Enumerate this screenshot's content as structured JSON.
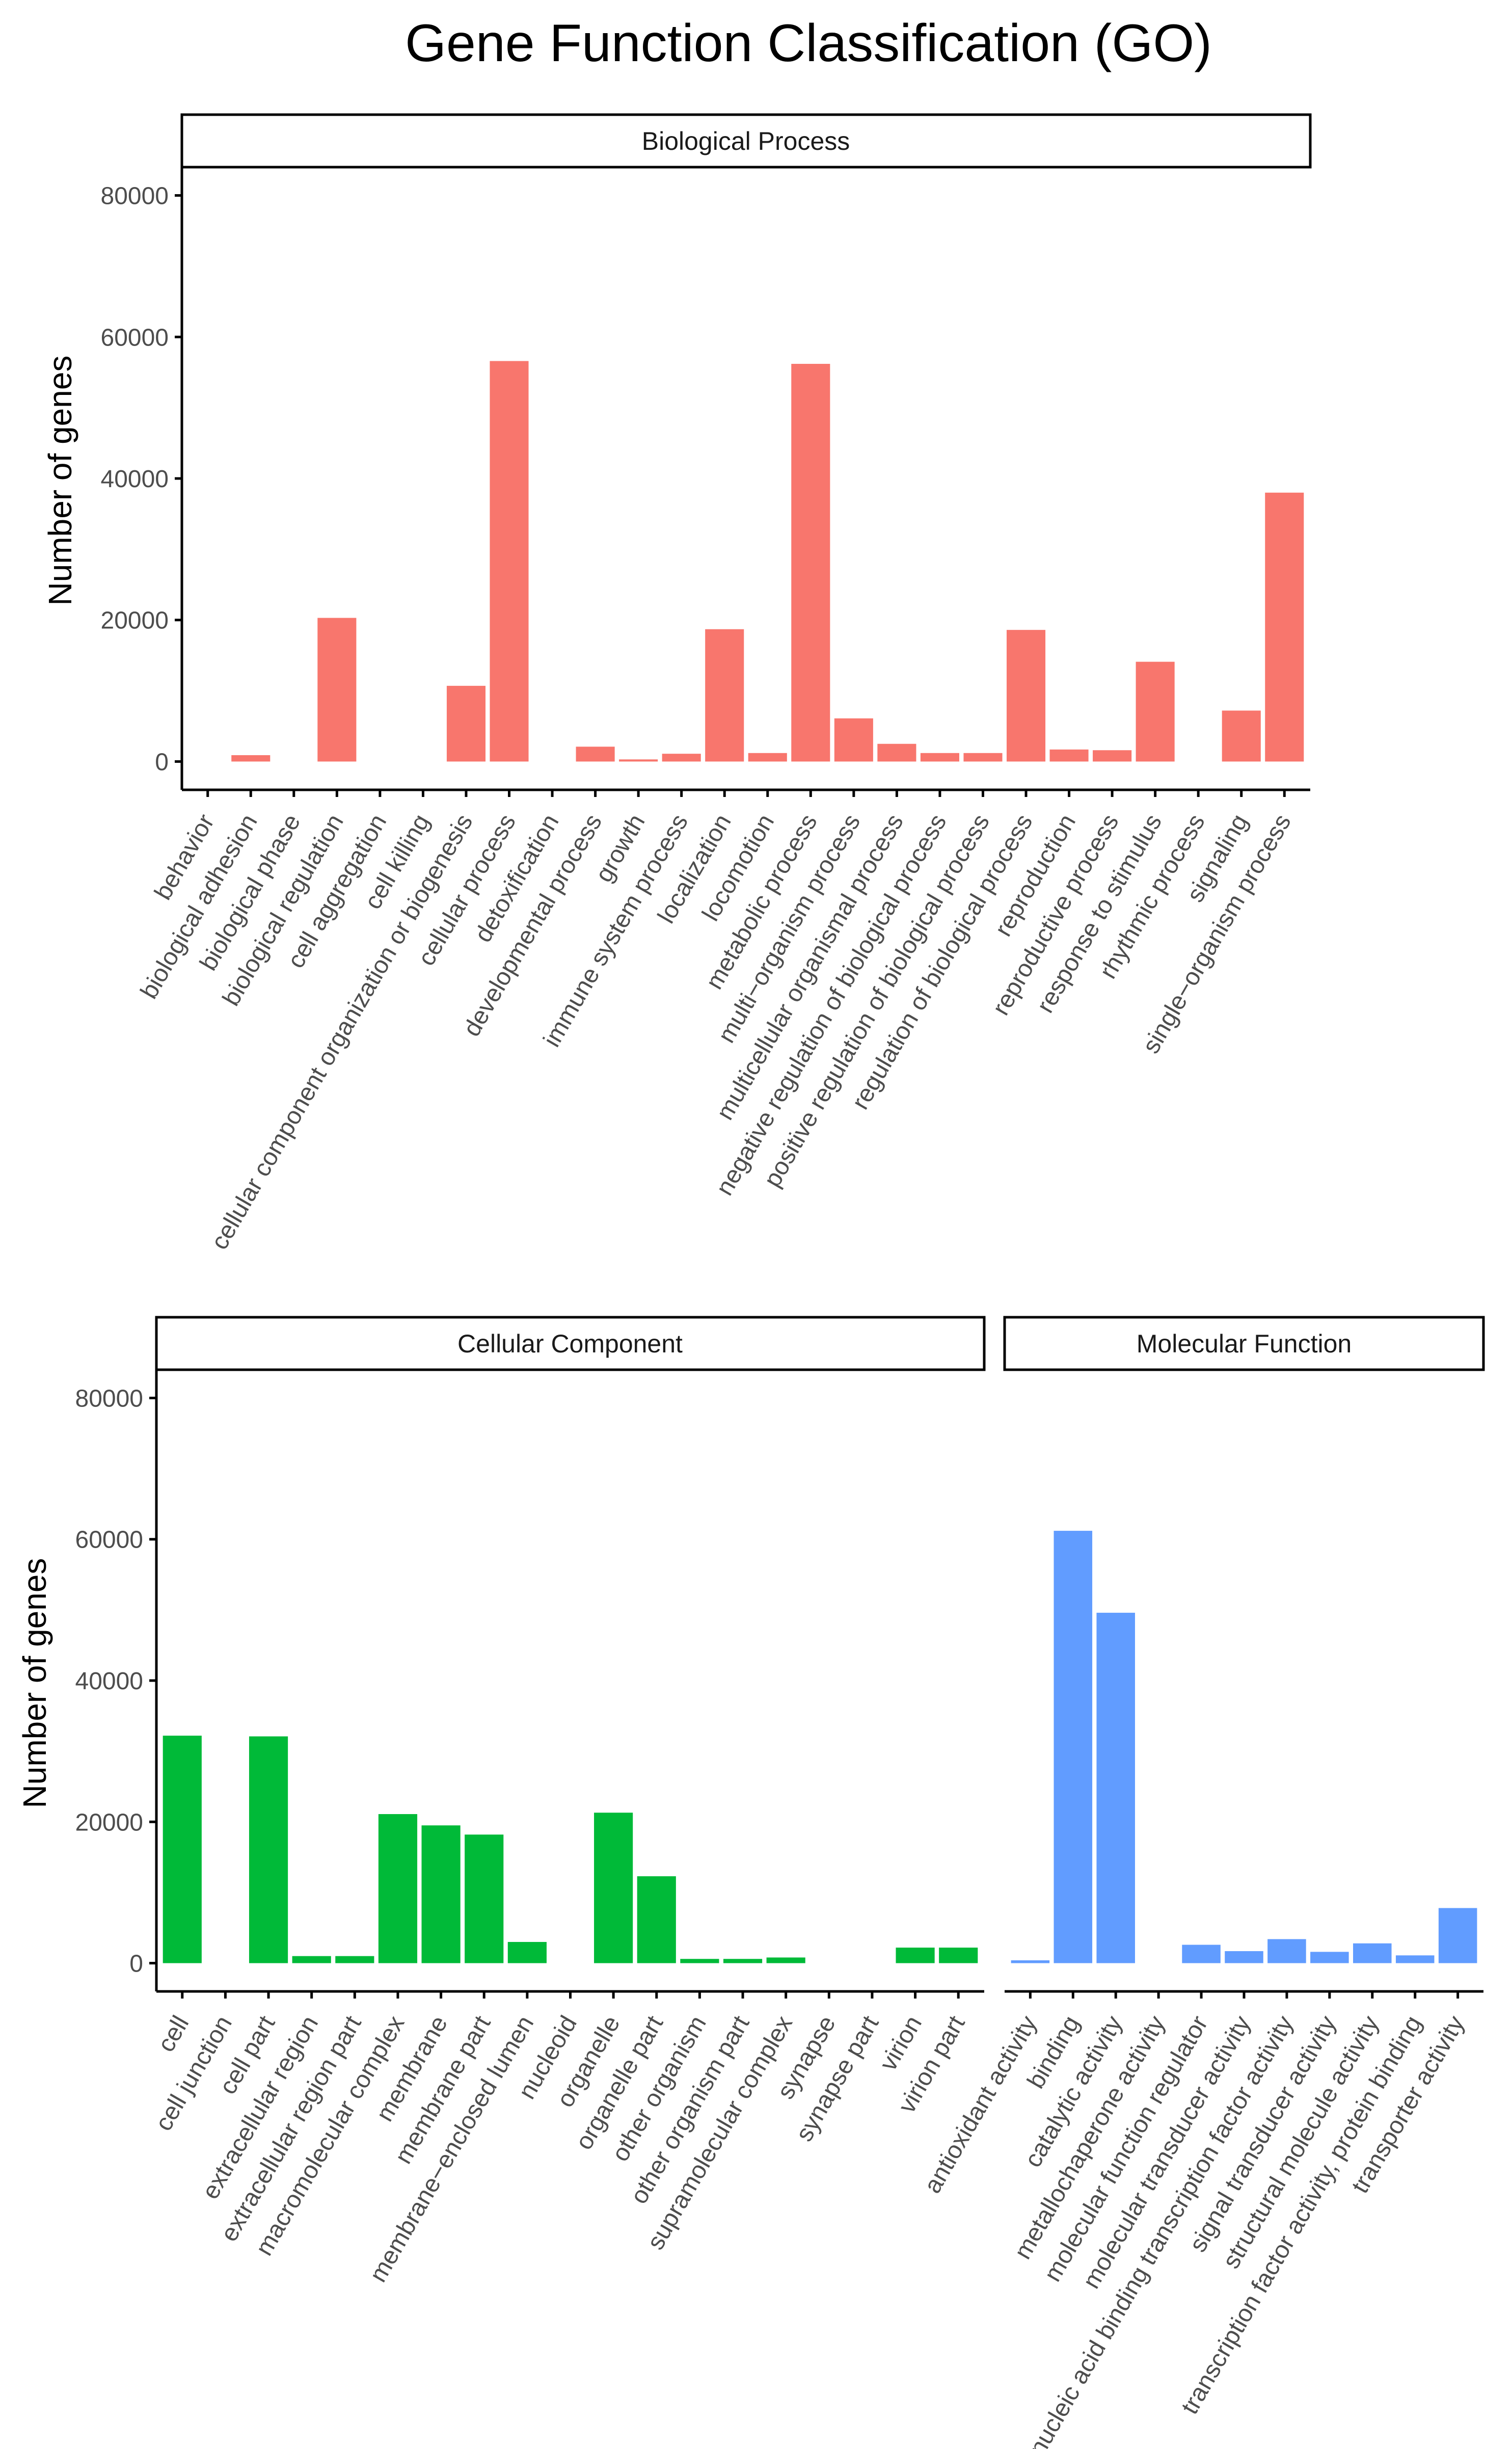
{
  "figure_title": "Gene Function Classification (GO)",
  "colors": {
    "biological_process": "#F8766D",
    "cellular_component": "#00BA38",
    "molecular_function": "#619CFF",
    "axis": "#000000",
    "tick_text": "#4D4D4D",
    "strip_fill": "#FFFFFF",
    "background": "#FFFFFF"
  },
  "chart_data": [
    {
      "type": "bar",
      "panel": "Biological Process",
      "ylabel": "Number of genes",
      "ylim": [
        -4000,
        84000
      ],
      "yticks": [
        "0",
        "20000",
        "40000",
        "60000",
        "80000"
      ],
      "categories": [
        "behavior",
        "biological adhesion",
        "biological phase",
        "biological regulation",
        "cell aggregation",
        "cell killing",
        "cellular component organization or biogenesis",
        "cellular process",
        "detoxification",
        "developmental process",
        "growth",
        "immune system process",
        "localization",
        "locomotion",
        "metabolic process",
        "multi−organism process",
        "multicellular organismal process",
        "negative regulation of biological process",
        "positive regulation of biological process",
        "regulation of biological process",
        "reproduction",
        "reproductive process",
        "response to stimulus",
        "rhythmic process",
        "signaling",
        "single−organism process"
      ],
      "values": [
        0,
        900,
        0,
        20300,
        0,
        0,
        10700,
        56600,
        0,
        2100,
        300,
        1100,
        18700,
        1200,
        56200,
        6100,
        2500,
        1200,
        1200,
        18600,
        1700,
        1600,
        14100,
        0,
        7200,
        38000
      ]
    },
    {
      "type": "bar",
      "panel": "Cellular Component",
      "ylabel": "Number of genes",
      "ylim": [
        -4000,
        84000
      ],
      "yticks": [
        "0",
        "20000",
        "40000",
        "60000",
        "80000"
      ],
      "categories": [
        "cell",
        "cell junction",
        "cell part",
        "extracellular region",
        "extracellular region part",
        "macromolecular complex",
        "membrane",
        "membrane part",
        "membrane−enclosed lumen",
        "nucleoid",
        "organelle",
        "organelle part",
        "other organism",
        "other organism part",
        "supramolecular complex",
        "synapse",
        "synapse part",
        "virion",
        "virion part"
      ],
      "values": [
        32200,
        0,
        32100,
        1000,
        1000,
        21100,
        19500,
        18200,
        3000,
        0,
        21300,
        12300,
        600,
        600,
        800,
        0,
        0,
        2200,
        2200
      ]
    },
    {
      "type": "bar",
      "panel": "Molecular Function",
      "ylim": [
        -4000,
        84000
      ],
      "categories": [
        "antioxidant activity",
        "binding",
        "catalytic activity",
        "metallochaperone activity",
        "molecular function regulator",
        "molecular transducer activity",
        "nucleic acid binding transcription factor activity",
        "signal transducer activity",
        "structural molecule activity",
        "transcription factor activity, protein binding",
        "transporter activity"
      ],
      "values": [
        400,
        61200,
        49600,
        0,
        2600,
        1700,
        3400,
        1600,
        2800,
        1100,
        7800
      ]
    }
  ]
}
